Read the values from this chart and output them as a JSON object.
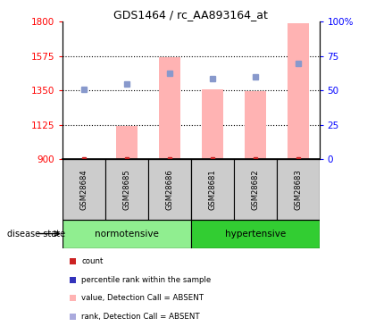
{
  "title": "GDS1464 / rc_AA893164_at",
  "samples": [
    "GSM28684",
    "GSM28685",
    "GSM28686",
    "GSM28681",
    "GSM28682",
    "GSM28683"
  ],
  "group_labels": [
    "normotensive",
    "hypertensive"
  ],
  "bar_heights": [
    901,
    1120,
    1570,
    1360,
    1345,
    1790
  ],
  "bar_base": 900,
  "rank_dots": [
    1355,
    1390,
    1460,
    1430,
    1440,
    1530
  ],
  "ylim_left": [
    900,
    1800
  ],
  "ylim_right": [
    0,
    100
  ],
  "yticks_left": [
    900,
    1125,
    1350,
    1575,
    1800
  ],
  "yticks_right": [
    0,
    25,
    50,
    75,
    100
  ],
  "bar_color": "#FFB3B3",
  "rank_dot_color": "#8899CC",
  "count_dot_color": "#CC2222",
  "normotensive_color": "#90EE90",
  "hypertensive_color": "#32CD32",
  "sample_box_color": "#CCCCCC",
  "legend_items": [
    {
      "label": "count",
      "color": "#CC2222"
    },
    {
      "label": "percentile rank within the sample",
      "color": "#3333BB"
    },
    {
      "label": "value, Detection Call = ABSENT",
      "color": "#FFB3B3"
    },
    {
      "label": "rank, Detection Call = ABSENT",
      "color": "#AAAADD"
    }
  ],
  "disease_state_label": "disease state"
}
